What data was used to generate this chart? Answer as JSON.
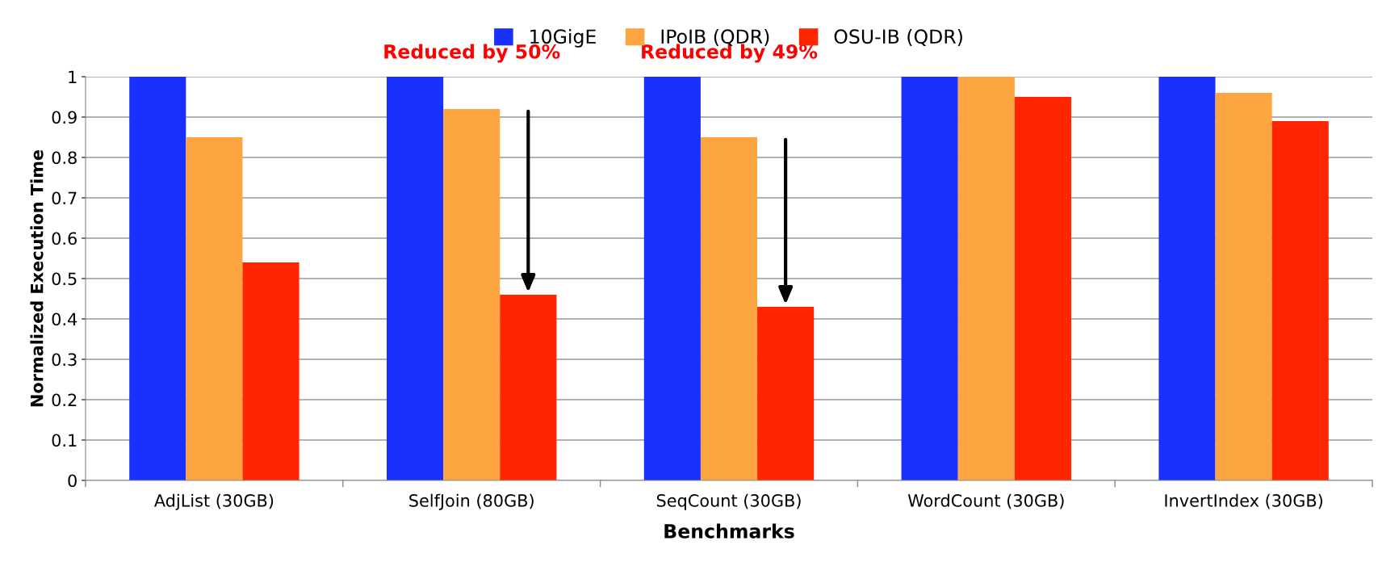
{
  "chart_data": {
    "type": "bar",
    "xlabel": "Benchmarks",
    "ylabel": "Normalized Execution Time",
    "categories": [
      "AdjList (30GB)",
      "SelfJoin (80GB)",
      "SeqCount (30GB)",
      "WordCount (30GB)",
      "InvertIndex (30GB)"
    ],
    "series": [
      {
        "name": "10GigE",
        "color": "#1a30ff",
        "values": [
          1,
          1,
          1,
          1,
          1
        ]
      },
      {
        "name": "IPoIB (QDR)",
        "color": "#fda641",
        "values": [
          0.85,
          0.92,
          0.85,
          1.0,
          0.96
        ]
      },
      {
        "name": "OSU-IB (QDR)",
        "color": "#ff2600",
        "values": [
          0.54,
          0.46,
          0.43,
          0.95,
          0.89
        ]
      }
    ],
    "ylim": [
      0,
      1
    ],
    "yticks": [
      0,
      0.1,
      0.2,
      0.3,
      0.4,
      0.5,
      0.6,
      0.7,
      0.8,
      0.9,
      1
    ],
    "grid": "y",
    "legend": "top",
    "annotations": [
      "Reduced by 50%",
      "Reduced by 49%"
    ]
  }
}
